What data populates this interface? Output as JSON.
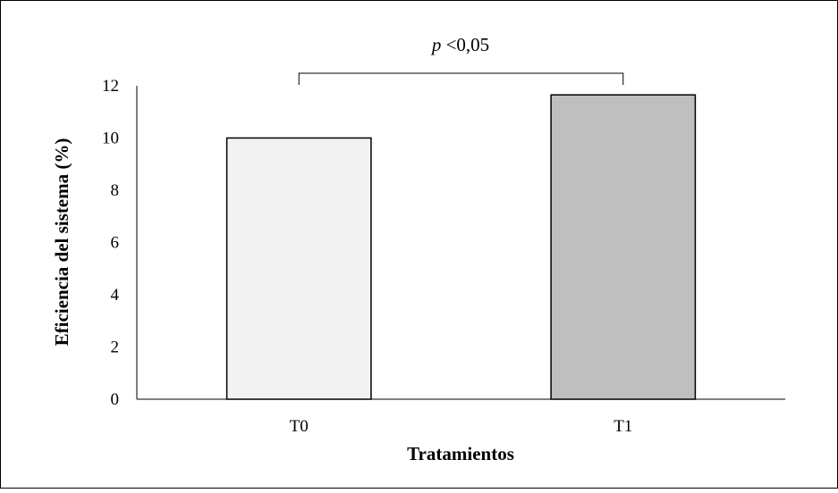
{
  "chart_data": {
    "type": "bar",
    "categories": [
      "T0",
      "T1"
    ],
    "values": [
      10.0,
      11.65
    ],
    "bar_colors": [
      "#f2f2f2",
      "#bfbfbf"
    ],
    "bar_edge_color": "#000000",
    "xlabel": "Tratamientos",
    "ylabel": "Eficiencia del sistema (%)",
    "ylim": [
      0,
      12
    ],
    "yticks": [
      0,
      2,
      4,
      6,
      8,
      10,
      12
    ],
    "grid": false,
    "legend": "none",
    "annotation": {
      "p_symbol": "p",
      "text": " <0,05",
      "between": [
        "T0",
        "T1"
      ]
    }
  }
}
